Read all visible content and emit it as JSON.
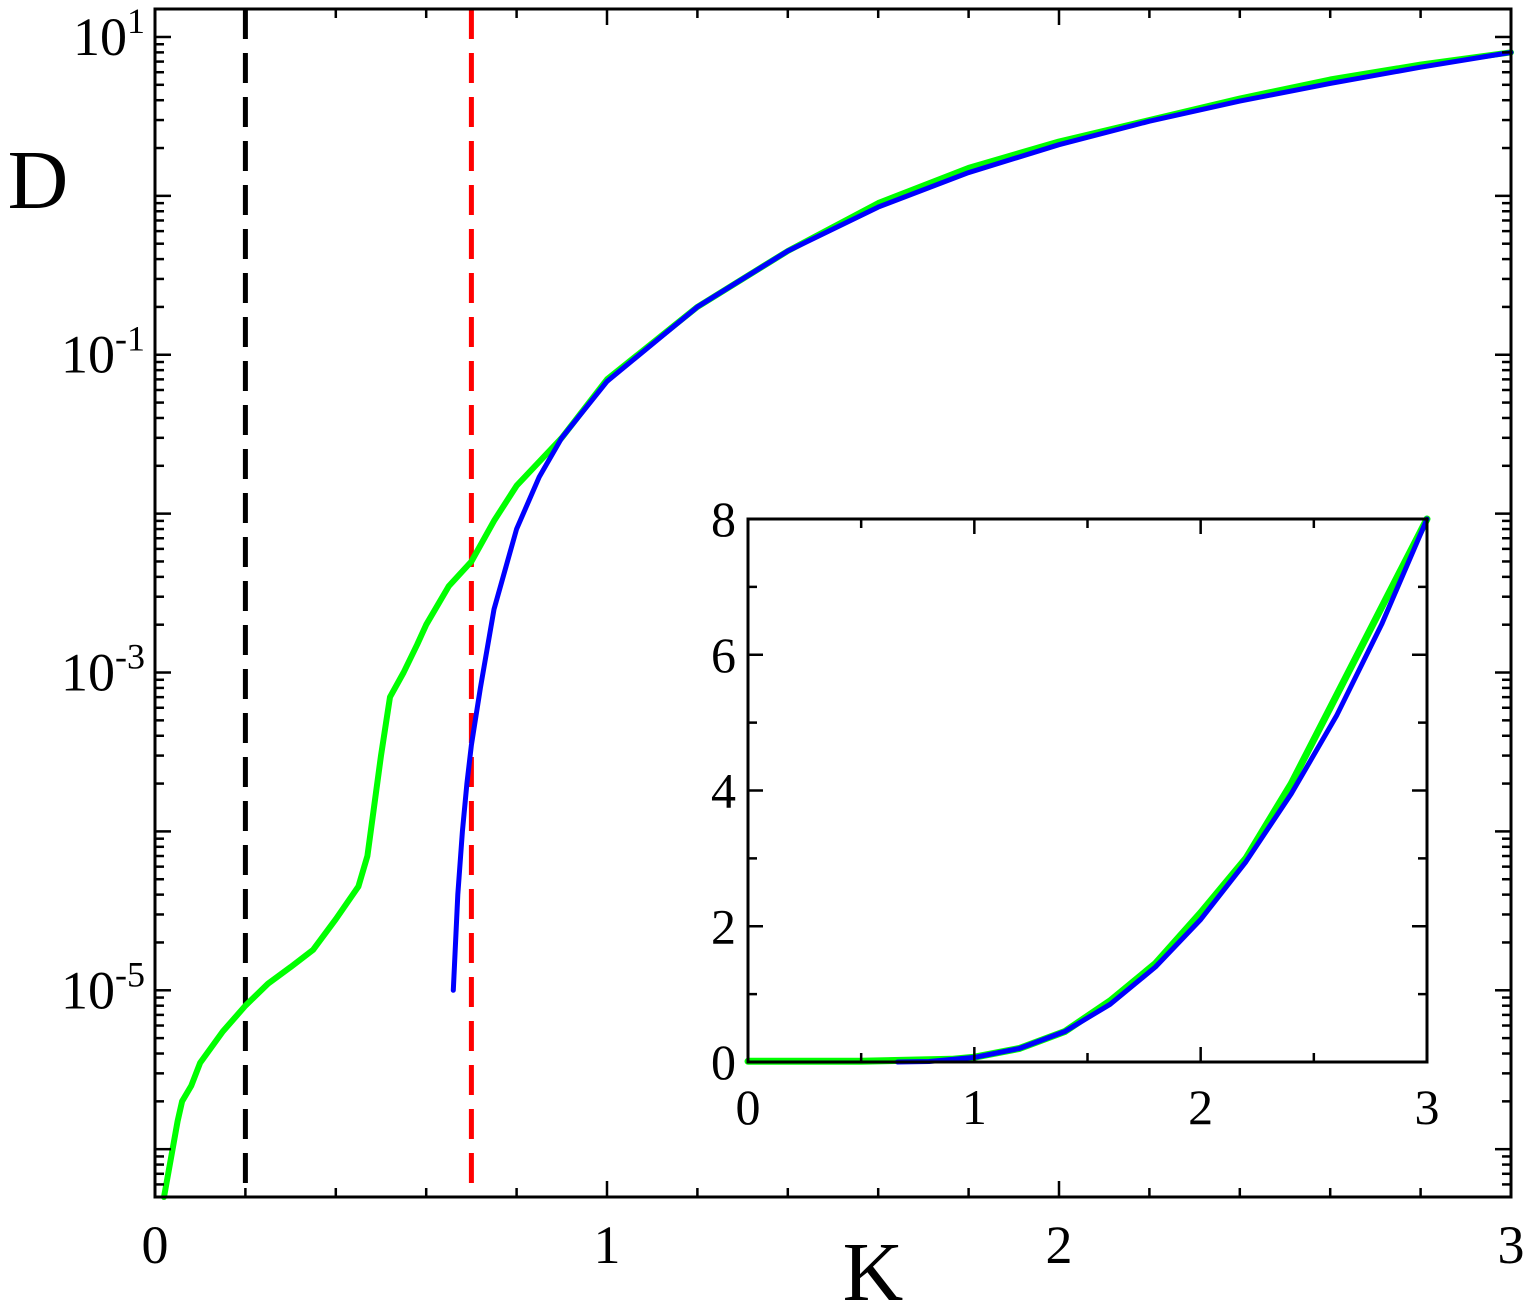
{
  "chart_data": [
    {
      "type": "line",
      "title": "",
      "xlabel": "K",
      "ylabel": "D",
      "xlim": [
        0,
        3
      ],
      "ylim": [
        5e-07,
        15
      ],
      "yscale": "log",
      "grid": false,
      "x_ticks": [
        "0",
        "1",
        "2",
        "3"
      ],
      "y_ticks": [
        {
          "base": "10",
          "exp": "1",
          "value": 10
        },
        {
          "base": "10",
          "exp": "-1",
          "value": 0.1
        },
        {
          "base": "10",
          "exp": "-3",
          "value": 0.001
        },
        {
          "base": "10",
          "exp": "-5",
          "value": 1e-05
        }
      ],
      "vlines": [
        {
          "x": 0.2,
          "color": "#000000",
          "style": "dashed"
        },
        {
          "x": 0.7,
          "color": "#ff0000",
          "style": "dashed"
        }
      ],
      "series": [
        {
          "color": "#00ff00",
          "x": [
            0.02,
            0.05,
            0.06,
            0.08,
            0.1,
            0.15,
            0.2,
            0.25,
            0.3,
            0.35,
            0.4,
            0.45,
            0.47,
            0.5,
            0.52,
            0.55,
            0.58,
            0.6,
            0.65,
            0.7,
            0.75,
            0.8,
            0.9,
            1.0,
            1.2,
            1.4,
            1.6,
            1.8,
            2.0,
            2.2,
            2.4,
            2.6,
            2.8,
            3.0
          ],
          "y": [
            5e-07,
            1.5e-06,
            2e-06,
            2.5e-06,
            3.5e-06,
            5.5e-06,
            8e-06,
            1.1e-05,
            1.4e-05,
            1.8e-05,
            2.8e-05,
            4.5e-05,
            7e-05,
            0.0003,
            0.0007,
            0.001,
            0.0015,
            0.002,
            0.0035,
            0.005,
            0.009,
            0.015,
            0.03,
            0.07,
            0.2,
            0.45,
            0.9,
            1.5,
            2.2,
            3.0,
            4.1,
            5.4,
            6.7,
            8.0
          ]
        },
        {
          "color": "#0000ff",
          "x": [
            0.66,
            0.67,
            0.68,
            0.69,
            0.7,
            0.72,
            0.75,
            0.8,
            0.85,
            0.9,
            1.0,
            1.2,
            1.4,
            1.6,
            1.8,
            2.0,
            2.2,
            2.4,
            2.6,
            2.8,
            3.0
          ],
          "y": [
            1e-05,
            4e-05,
            0.0001,
            0.0002,
            0.00035,
            0.0008,
            0.0025,
            0.008,
            0.017,
            0.03,
            0.068,
            0.2,
            0.45,
            0.85,
            1.4,
            2.1,
            2.95,
            3.95,
            5.1,
            6.45,
            8.0
          ]
        }
      ]
    },
    {
      "type": "line",
      "title": "",
      "xlabel": "",
      "ylabel": "",
      "xlim": [
        0,
        3
      ],
      "ylim": [
        0,
        8
      ],
      "yscale": "linear",
      "grid": false,
      "x_ticks": [
        "0",
        "1",
        "2",
        "3"
      ],
      "y_ticks": [
        "0",
        "2",
        "4",
        "6",
        "8"
      ],
      "series": [
        {
          "color": "#00ff00",
          "x": [
            0,
            0.5,
            0.9,
            1.0,
            1.2,
            1.4,
            1.6,
            1.8,
            2.0,
            2.2,
            2.4,
            2.6,
            2.8,
            3.0
          ],
          "y": [
            0.01,
            0.01,
            0.04,
            0.07,
            0.2,
            0.45,
            0.9,
            1.45,
            2.2,
            3.0,
            4.1,
            5.4,
            6.7,
            8.0
          ]
        },
        {
          "color": "#0000ff",
          "x": [
            0.66,
            0.8,
            1.0,
            1.2,
            1.4,
            1.6,
            1.8,
            2.0,
            2.2,
            2.4,
            2.6,
            2.8,
            3.0
          ],
          "y": [
            0.0,
            0.008,
            0.068,
            0.2,
            0.45,
            0.85,
            1.4,
            2.1,
            2.95,
            3.95,
            5.1,
            6.45,
            8.0
          ]
        }
      ]
    }
  ]
}
